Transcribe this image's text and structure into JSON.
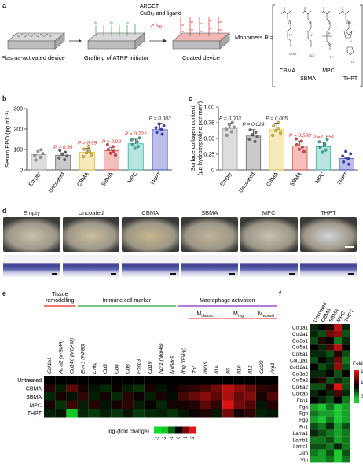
{
  "panels": {
    "a": "a",
    "b": "b",
    "c": "c",
    "d": "d",
    "e": "e",
    "f": "f"
  },
  "schematic": {
    "steps": [
      "Plasma-activated device",
      "Grafting of ATRP initiator",
      "Coated device"
    ],
    "arget_line1": "ARGET",
    "arget_line2": "CuBr₂ and ligand",
    "monomers_label": "Monomers R =",
    "monomers": [
      "CBMA",
      "SBMA",
      "MPC",
      "THPT"
    ]
  },
  "chart_b": {
    "type": "bar",
    "ylabel": "Serum EPO (pg ml⁻¹)",
    "ylim": [
      0,
      300
    ],
    "yticks": [
      "0",
      "100",
      "200",
      "300"
    ],
    "categories": [
      "Empty",
      "Uncoated",
      "CBMA",
      "SBMA",
      "MPC",
      "THPT"
    ],
    "values": [
      75,
      72,
      87,
      95,
      128,
      197
    ],
    "errors": [
      8,
      12,
      18,
      16,
      22,
      28
    ],
    "colors": [
      "#9e9e9e",
      "#666666",
      "#e7c33a",
      "#e0463f",
      "#35b4a3",
      "#3b43c4"
    ],
    "p_labels": [
      "",
      "P > 0.99",
      "P > 0.99",
      "P > 0.99",
      "P = 0.722",
      "P = 0.003"
    ],
    "p_colors": [
      "",
      "#e8281e",
      "#e8281e",
      "#e8281e",
      "#e8281e",
      "#222222"
    ]
  },
  "chart_c": {
    "type": "bar",
    "ylabel_line1": "Surface collagen content",
    "ylabel_line2": "(µg hydroxyproline per mm²)",
    "ylim": [
      0,
      1.0
    ],
    "yticks": [
      "0",
      "0.25",
      "0.50",
      "0.75",
      "1.00"
    ],
    "categories": [
      "Empty",
      "Uncoated",
      "CBMA",
      "SBMA",
      "MPC",
      "THPT"
    ],
    "values": [
      0.66,
      0.54,
      0.64,
      0.38,
      0.37,
      0.18
    ],
    "errors": [
      0.07,
      0.1,
      0.09,
      0.08,
      0.07,
      0.01
    ],
    "colors": [
      "#9e9e9e",
      "#666666",
      "#e7c33a",
      "#e0463f",
      "#35b4a3",
      "#3b43c4"
    ],
    "p_labels": [
      "P = 0.003",
      "P = 0.029",
      "P = 0.005",
      "P = 0.580",
      "P = 0.651",
      ""
    ],
    "p_colors": [
      "#222222",
      "#222222",
      "#222222",
      "#e8281e",
      "#e8281e",
      ""
    ]
  },
  "panel_d": {
    "labels": [
      "Empty",
      "Uncoated",
      "CBMA",
      "SBMA",
      "MPC",
      "THPT"
    ]
  },
  "heatmap_e": {
    "groups": [
      "Tissue remodelling",
      "Immune cell marker",
      "Macrophage activation"
    ],
    "group_colors": [
      "#e8281e",
      "#2e9e3a",
      "#8a2fb8"
    ],
    "subgroups": [
      "Mclassic",
      "Mreg",
      "Mwound"
    ],
    "genes": [
      "Col1a1",
      "Acta2 (α-SMA)",
      "Cd146 (MCAM)",
      "Emr1 (F4/80)",
      "Ly6g",
      "Cd3",
      "Cd4",
      "Cd8",
      "Foxp3",
      "Cd19",
      "Ncr1 (Nkp46)",
      "Mx5dc9",
      "Ifng (IFN-γ)",
      "Tnf",
      "iNOS",
      "Il1b",
      "Il6",
      "Il10",
      "Il12",
      "Ccl22",
      "Arg1"
    ],
    "rows": [
      "Untreated",
      "CBMA",
      "SBMA",
      "MPC",
      "THPT"
    ],
    "values": [
      [
        0,
        0,
        0,
        0,
        0,
        0,
        0,
        0,
        0,
        0,
        0,
        0,
        0,
        0,
        0,
        0,
        0,
        0,
        0,
        0,
        0
      ],
      [
        0.3,
        -0.3,
        0.8,
        0.2,
        -0.2,
        -0.4,
        0.1,
        -0.3,
        -0.5,
        0.2,
        -0.2,
        0.1,
        0.3,
        0.4,
        0.6,
        1.0,
        1.6,
        1.2,
        0.9,
        0.4,
        0.3
      ],
      [
        -0.4,
        0.2,
        -0.2,
        0.4,
        -0.3,
        0.2,
        -0.4,
        0.3,
        0.1,
        -0.3,
        0.2,
        -0.1,
        0.6,
        0.9,
        1.2,
        0.8,
        1.5,
        0.9,
        1.1,
        0.2,
        0.7
      ],
      [
        0.2,
        -0.5,
        0.5,
        -0.3,
        0.3,
        -0.2,
        0.2,
        0.4,
        -0.3,
        0.1,
        -0.4,
        0.2,
        0.2,
        0.3,
        0.8,
        0.4,
        1.9,
        1.0,
        0.7,
        -0.2,
        0.3
      ],
      [
        -0.3,
        -0.2,
        -2.0,
        -0.4,
        -0.6,
        -0.3,
        -0.5,
        -0.2,
        -0.6,
        -0.4,
        -0.3,
        -0.5,
        -0.2,
        0.1,
        0.3,
        -0.2,
        1.0,
        0.2,
        0.4,
        -0.3,
        -0.2
      ]
    ],
    "legend_label": "log₂(fold change)",
    "legend_ticks": [
      "-3",
      "-2",
      "-1",
      "0",
      "1",
      "2"
    ]
  },
  "heatmap_f": {
    "columns": [
      "Uncoated",
      "CBMA",
      "SBMA",
      "MPC",
      "THPT"
    ],
    "genes": [
      "Col1a1",
      "Col2a1",
      "Col3a1",
      "Col5a1",
      "Col6a1",
      "Col11a1",
      "Col12a1",
      "Col1a2",
      "Col5a2",
      "Col6a2",
      "Col6a5",
      "Fbn1",
      "Fga",
      "Fgb",
      "Fgg",
      "Fn1",
      "Lama1",
      "Lamb1",
      "Lamc1",
      "Lum",
      "Vtn"
    ],
    "values": [
      [
        0.9,
        1.0,
        1.1,
        1.5,
        0.9
      ],
      [
        0.9,
        0.8,
        1.3,
        1.4,
        0.8
      ],
      [
        0.8,
        1.1,
        1.0,
        0.7,
        0.9
      ],
      [
        1.0,
        0.9,
        1.2,
        1.5,
        1.0
      ],
      [
        0.9,
        0.9,
        0.8,
        1.1,
        0.8
      ],
      [
        0.8,
        1.0,
        0.9,
        1.3,
        0.7
      ],
      [
        1.0,
        0.8,
        0.9,
        1.4,
        0.8
      ],
      [
        0.9,
        0.9,
        1.0,
        0.8,
        1.0
      ],
      [
        1.0,
        1.1,
        0.8,
        0.9,
        0.8
      ],
      [
        0.8,
        0.8,
        1.1,
        1.6,
        0.8
      ],
      [
        0.9,
        1.0,
        0.9,
        1.2,
        0.9
      ],
      [
        1.0,
        0.9,
        0.8,
        1.0,
        0.7
      ],
      [
        0.6,
        0.5,
        0.7,
        0.4,
        0.6
      ],
      [
        0.7,
        0.6,
        0.6,
        0.5,
        0.6
      ],
      [
        0.6,
        0.5,
        0.7,
        0.5,
        0.6
      ],
      [
        0.8,
        0.7,
        0.9,
        0.6,
        0.8
      ],
      [
        0.9,
        0.8,
        0.7,
        0.6,
        0.7
      ],
      [
        0.7,
        0.7,
        0.8,
        0.6,
        0.7
      ],
      [
        0.8,
        0.8,
        0.7,
        0.9,
        0.7
      ],
      [
        0.7,
        0.6,
        0.8,
        0.5,
        0.8
      ],
      [
        0.6,
        0.6,
        0.7,
        0.5,
        0.7
      ]
    ],
    "legend_label": "Fold change",
    "legend_ticks": [
      "1.5",
      "1",
      "0.5"
    ]
  }
}
